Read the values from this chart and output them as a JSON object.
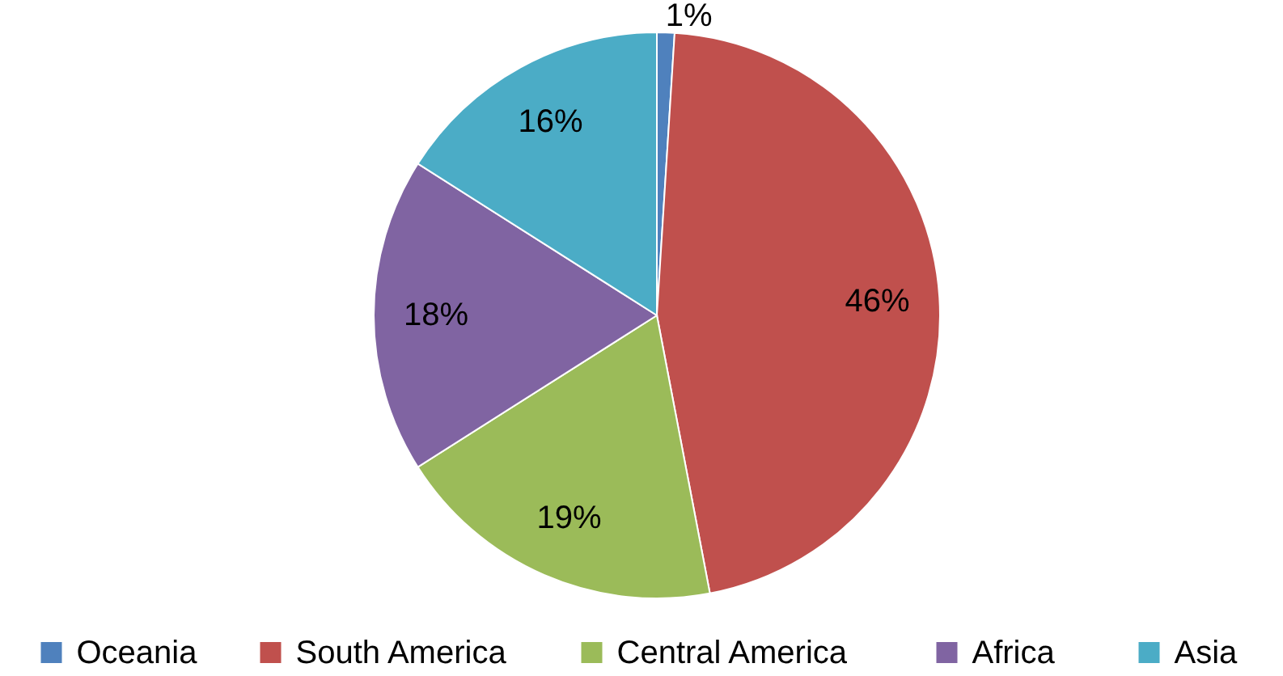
{
  "chart_data": {
    "type": "pie",
    "categories": [
      "Oceania",
      "South America",
      "Central America",
      "Africa",
      "Asia"
    ],
    "values": [
      1,
      46,
      19,
      18,
      16
    ],
    "colors": [
      "#4f81bd",
      "#c0504d",
      "#9bbb59",
      "#8064a2",
      "#4bacc6"
    ],
    "value_labels": [
      "1%",
      "46%",
      "19%",
      "18%",
      "16%"
    ],
    "legend": "bottom"
  }
}
